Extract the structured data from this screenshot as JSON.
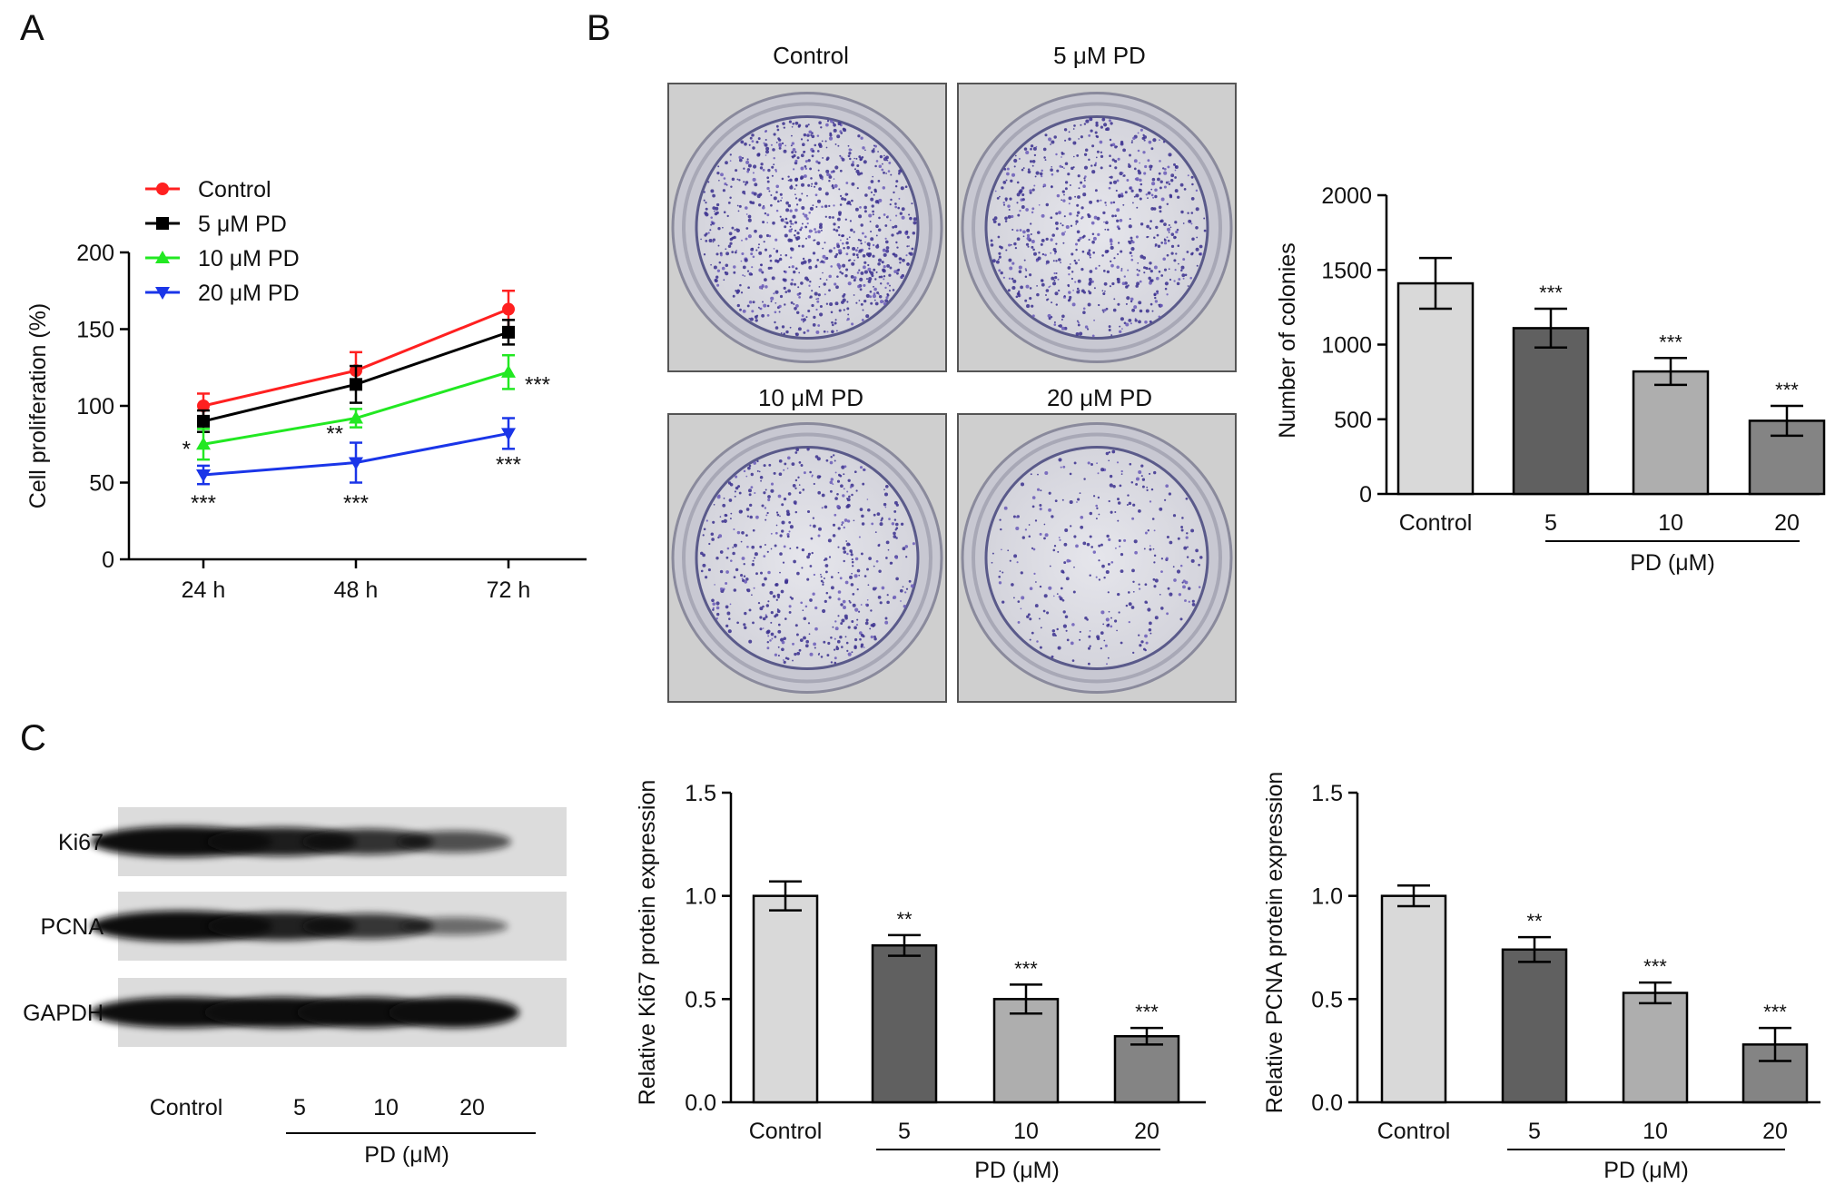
{
  "figure": {
    "panel_labels": [
      "A",
      "B",
      "C"
    ]
  },
  "chart_data": [
    {
      "id": "A",
      "type": "line",
      "xlabel": "",
      "ylabel": "Cell proliferation (%)",
      "categories": [
        "24 h",
        "48 h",
        "72 h"
      ],
      "ylim": [
        0,
        200
      ],
      "yticks": [
        0,
        50,
        100,
        150,
        200
      ],
      "legend_position": "top-left",
      "series": [
        {
          "name": "Control",
          "color": "#ff2020",
          "marker": "circle",
          "values": [
            100,
            123,
            163
          ],
          "errors": [
            8,
            12,
            12
          ]
        },
        {
          "name": "5 μM PD",
          "color": "#000000",
          "marker": "square",
          "values": [
            90,
            114,
            148
          ],
          "errors": [
            7,
            12,
            8
          ]
        },
        {
          "name": "10 μM PD",
          "color": "#22e822",
          "marker": "triangle-up",
          "values": [
            75,
            92,
            122
          ],
          "errors": [
            10,
            6,
            11
          ]
        },
        {
          "name": "20 μM PD",
          "color": "#1a35e8",
          "marker": "triangle-down",
          "values": [
            55,
            63,
            82
          ],
          "errors": [
            6,
            13,
            10
          ]
        }
      ],
      "annotations": [
        {
          "text": "*",
          "category": "24 h",
          "side": "left",
          "y": 73
        },
        {
          "text": "***",
          "category": "24 h",
          "side": "below",
          "y": 38
        },
        {
          "text": "**",
          "category": "48 h",
          "side": "left",
          "y": 83
        },
        {
          "text": "***",
          "category": "48 h",
          "side": "below",
          "y": 38
        },
        {
          "text": "***",
          "category": "72 h",
          "side": "right",
          "y": 115
        },
        {
          "text": "***",
          "category": "72 h",
          "side": "below",
          "y": 63
        }
      ]
    },
    {
      "id": "B-bar",
      "type": "bar",
      "ylabel": "Number of colonies",
      "categories": [
        "Control",
        "5",
        "10",
        "20"
      ],
      "group_label": "PD (μM)",
      "ylim": [
        0,
        2000
      ],
      "yticks": [
        0,
        500,
        1000,
        1500,
        2000
      ],
      "values": [
        1410,
        1110,
        820,
        490
      ],
      "errors": [
        170,
        130,
        90,
        100
      ],
      "colors": [
        "#d9d9d9",
        "#606060",
        "#aeaeae",
        "#848484"
      ],
      "significance": [
        "",
        "***",
        "***",
        "***"
      ]
    },
    {
      "id": "C-ki67",
      "type": "bar",
      "ylabel": "Relative Ki67 protein expression",
      "categories": [
        "Control",
        "5",
        "10",
        "20"
      ],
      "group_label": "PD (μM)",
      "ylim": [
        0,
        1.5
      ],
      "yticks": [
        "0.0",
        "0.5",
        "1.0",
        "1.5"
      ],
      "values": [
        1.0,
        0.76,
        0.5,
        0.32
      ],
      "errors": [
        0.07,
        0.05,
        0.07,
        0.04
      ],
      "colors": [
        "#d9d9d9",
        "#606060",
        "#aeaeae",
        "#848484"
      ],
      "significance": [
        "",
        "**",
        "***",
        "***"
      ]
    },
    {
      "id": "C-pcna",
      "type": "bar",
      "ylabel": "Relative PCNA protein expression",
      "categories": [
        "Control",
        "5",
        "10",
        "20"
      ],
      "group_label": "PD (μM)",
      "ylim": [
        0,
        1.5
      ],
      "yticks": [
        "0.0",
        "0.5",
        "1.0",
        "1.5"
      ],
      "values": [
        1.0,
        0.74,
        0.53,
        0.28
      ],
      "errors": [
        0.05,
        0.06,
        0.05,
        0.08
      ],
      "colors": [
        "#d9d9d9",
        "#606060",
        "#aeaeae",
        "#848484"
      ],
      "significance": [
        "",
        "**",
        "***",
        "***"
      ]
    }
  ],
  "colony_plates": [
    {
      "label": "Control",
      "density": 1.0
    },
    {
      "label": "5 μM PD",
      "density": 0.8
    },
    {
      "label": "10 μM PD",
      "density": 0.6
    },
    {
      "label": "20 μM PD",
      "density": 0.35
    }
  ],
  "western_blot": {
    "rows": [
      {
        "label": "Ki67",
        "intensities": [
          1.0,
          0.88,
          0.72,
          0.5
        ]
      },
      {
        "label": "PCNA",
        "intensities": [
          1.0,
          0.85,
          0.7,
          0.3
        ]
      },
      {
        "label": "GAPDH",
        "intensities": [
          1.0,
          1.0,
          1.0,
          1.0
        ]
      }
    ],
    "lanes": [
      "Control",
      "5",
      "10",
      "20"
    ],
    "group_label": "PD (μM)"
  }
}
